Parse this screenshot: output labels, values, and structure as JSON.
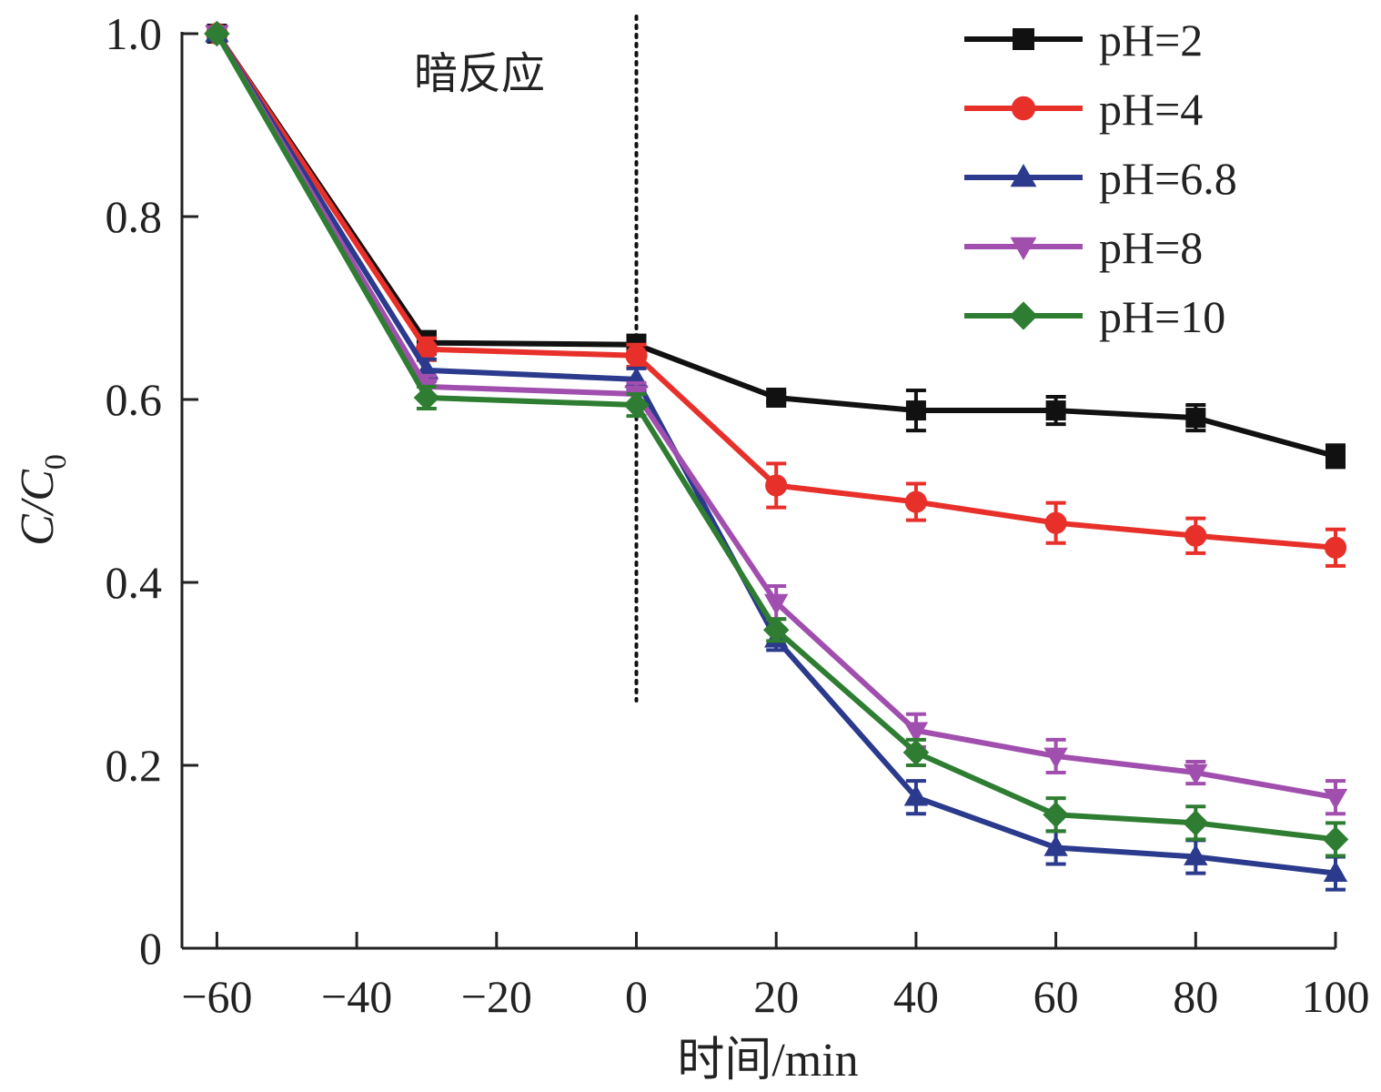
{
  "chart_data": {
    "type": "line",
    "xlabel": "时间/min",
    "ylabel": "C/C0",
    "ylabel_parts": {
      "main": "C/C",
      "sub": "0"
    },
    "xlim": [
      -65,
      100
    ],
    "ylim": [
      0,
      1.0
    ],
    "x_ticks": [
      -60,
      -40,
      -20,
      0,
      20,
      40,
      60,
      80,
      100
    ],
    "x_tick_labels": [
      "−60",
      "−40",
      "−20",
      "0",
      "20",
      "40",
      "60",
      "80",
      "100"
    ],
    "y_ticks": [
      0,
      0.2,
      0.4,
      0.6,
      0.8,
      1.0
    ],
    "y_tick_labels": [
      "0",
      "0.2",
      "0.4",
      "0.6",
      "0.8",
      "1.0"
    ],
    "grid": false,
    "legend_position": "top-right",
    "annotation": {
      "text": "暗反应",
      "vertical_line_x": 0,
      "line_style": "dotted"
    },
    "x": [
      -60,
      -30,
      0,
      20,
      40,
      60,
      80,
      100
    ],
    "series": [
      {
        "name": "pH=2",
        "color": "#111111",
        "marker": "square",
        "values": [
          1.0,
          0.662,
          0.66,
          0.602,
          0.588,
          0.588,
          0.58,
          0.538
        ],
        "errors": [
          0.0,
          0.012,
          0.01,
          0.005,
          0.022,
          0.015,
          0.014,
          0.012
        ]
      },
      {
        "name": "pH=4",
        "color": "#e8302a",
        "marker": "circle",
        "values": [
          1.0,
          0.655,
          0.648,
          0.506,
          0.488,
          0.465,
          0.451,
          0.438
        ],
        "errors": [
          0.0,
          0.012,
          0.012,
          0.024,
          0.02,
          0.022,
          0.019,
          0.02
        ]
      },
      {
        "name": "pH=6.8",
        "color": "#2b3a8c",
        "marker": "triangle-up",
        "values": [
          1.0,
          0.632,
          0.622,
          0.338,
          0.165,
          0.11,
          0.1,
          0.082
        ],
        "errors": [
          0.0,
          0.012,
          0.012,
          0.012,
          0.018,
          0.018,
          0.018,
          0.018
        ]
      },
      {
        "name": "pH=8",
        "color": "#a14fae",
        "marker": "triangle-down",
        "values": [
          1.0,
          0.614,
          0.606,
          0.378,
          0.238,
          0.21,
          0.192,
          0.165
        ],
        "errors": [
          0.0,
          0.012,
          0.012,
          0.018,
          0.018,
          0.018,
          0.012,
          0.018
        ]
      },
      {
        "name": "pH=10",
        "color": "#2e7d32",
        "marker": "diamond",
        "values": [
          1.0,
          0.602,
          0.594,
          0.348,
          0.214,
          0.146,
          0.137,
          0.119
        ],
        "errors": [
          0.0,
          0.012,
          0.012,
          0.012,
          0.014,
          0.018,
          0.018,
          0.018
        ]
      }
    ]
  }
}
